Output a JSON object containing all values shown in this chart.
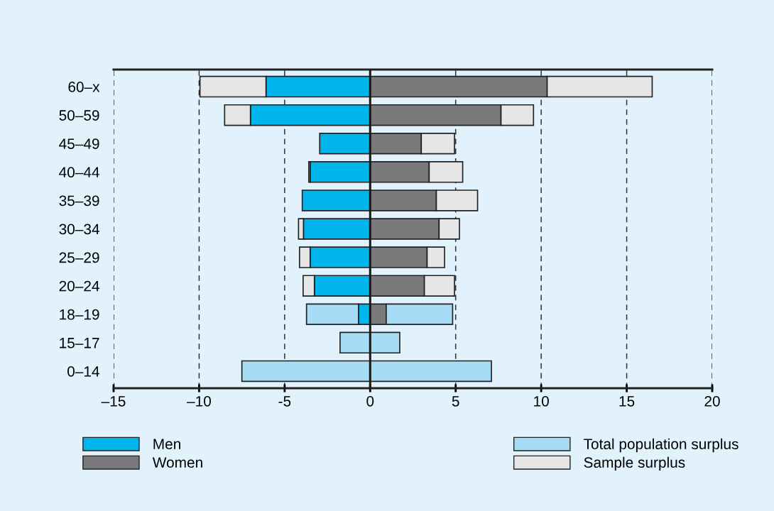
{
  "chart_data": {
    "type": "bar",
    "orientation": "horizontal",
    "stacked": true,
    "categories": [
      "60–x",
      "50–59",
      "45–49",
      "40–44",
      "35–39",
      "30–34",
      "25–29",
      "20–24",
      "18–19",
      "15–17",
      "0–14"
    ],
    "series": [
      {
        "name": "Men",
        "color": "#00b5ec",
        "values": [
          -6.09,
          -7.0,
          -2.95,
          -3.51,
          -3.97,
          -3.9,
          -3.51,
          -3.26,
          -0.68,
          null,
          null
        ]
      },
      {
        "name": "Women",
        "color": "#7a7a7c",
        "values": [
          10.35,
          7.65,
          2.99,
          3.45,
          3.87,
          4.03,
          3.33,
          3.17,
          0.94,
          null,
          null
        ]
      },
      {
        "name": "Total population surplus",
        "color": "#a6dcf5",
        "values": [
          null,
          null,
          null,
          null,
          null,
          null,
          null,
          null,
          -3.04,
          -1.76,
          -7.5
        ]
      },
      {
        "color": "#a6dcf5",
        "values": [
          null,
          null,
          null,
          null,
          null,
          null,
          null,
          null,
          3.88,
          1.73,
          7.09
        ]
      },
      {
        "name": "Sample surplus",
        "color": "#e6e6e6",
        "values": [
          -3.86,
          -1.51,
          null,
          -0.08,
          null,
          -0.29,
          -0.62,
          -0.66,
          null,
          null,
          null
        ]
      },
      {
        "color": "#e6e6e6",
        "values": [
          6.14,
          1.9,
          1.94,
          1.96,
          2.41,
          1.19,
          1.02,
          1.76,
          null,
          null,
          null
        ]
      }
    ],
    "xlim": [
      -15,
      20
    ],
    "xticks": [
      {
        "value": -15,
        "label": "–15"
      },
      {
        "value": -10,
        "label": "–10"
      },
      {
        "value": -5,
        "label": "-5"
      },
      0,
      5,
      10,
      15,
      20
    ],
    "ref_lines": [
      {
        "axis": "x",
        "value": 0,
        "color": "#1a1a1a"
      }
    ],
    "grid": "x",
    "legend": "bottom"
  }
}
